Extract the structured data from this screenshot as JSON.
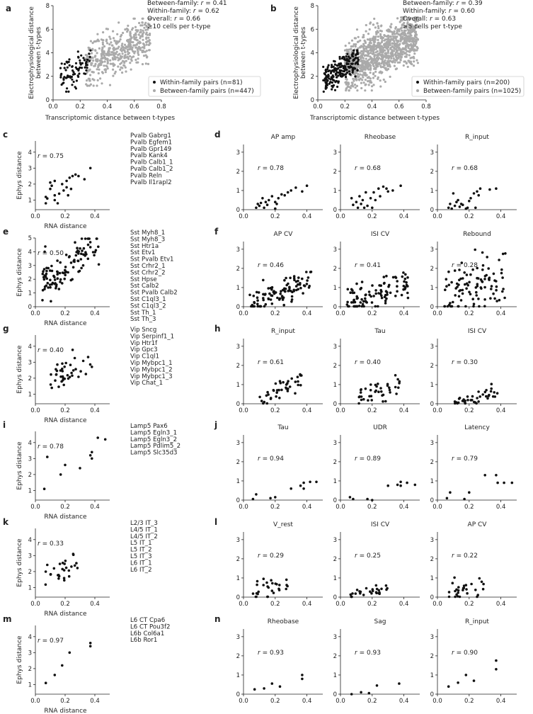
{
  "figure": {
    "colors": {
      "within": "#111111",
      "between": "#aaaaaa",
      "axis": "#222222"
    }
  },
  "chart_data": [
    {
      "id": "a",
      "type": "scatter",
      "panel_label": "a",
      "xlabel": "Transcriptomic distance between t-types",
      "ylabel": "Electrophysiological distance between t-types",
      "xlim": [
        0,
        0.8
      ],
      "ylim": [
        0,
        8
      ],
      "xticks": [
        "0.0",
        "0.2",
        "0.4",
        "0.6",
        "0.8"
      ],
      "yticks": [
        "0",
        "2",
        "4",
        "6",
        "8"
      ],
      "stats": [
        "Between-family: r = 0.41",
        "Within-family: r = 0.62",
        "Overall: r = 0.66",
        "≥10 cells per t-type"
      ],
      "legend_position": "lower-right",
      "series": [
        {
          "name": "Within-family pairs (n=81)",
          "color": "#111111",
          "n": 81,
          "x_range": [
            0.05,
            0.28
          ],
          "y_range": [
            0.7,
            4.2
          ],
          "r": 0.62
        },
        {
          "name": "Between-family pairs (n=447)",
          "color": "#aaaaaa",
          "n": 447,
          "x_range": [
            0.24,
            0.72
          ],
          "y_range": [
            1.2,
            6.9
          ],
          "r": 0.41
        }
      ]
    },
    {
      "id": "b",
      "type": "scatter",
      "panel_label": "b",
      "xlabel": "Transcriptomic distance between t-types",
      "ylabel": "Electrophysiological distance between t-types",
      "xlim": [
        0,
        0.8
      ],
      "ylim": [
        0,
        8
      ],
      "xticks": [
        "0.0",
        "0.2",
        "0.4",
        "0.6",
        "0.8"
      ],
      "yticks": [
        "0",
        "2",
        "4",
        "6",
        "8"
      ],
      "stats": [
        "Between-family: r = 0.39",
        "Within-family: r = 0.60",
        "Overall: r = 0.63",
        "≥5 cells per t-type"
      ],
      "legend_position": "lower-right",
      "series": [
        {
          "name": "Within-family pairs (n=200)",
          "color": "#111111",
          "n": 200,
          "x_range": [
            0.04,
            0.3
          ],
          "y_range": [
            0.7,
            4.2
          ],
          "r": 0.6
        },
        {
          "name": "Between-family pairs (n=1025)",
          "color": "#aaaaaa",
          "n": 1025,
          "x_range": [
            0.2,
            0.74
          ],
          "y_range": [
            0.8,
            7.0
          ],
          "r": 0.39
        }
      ]
    }
  ],
  "rows": [
    {
      "label": "c",
      "sub_label": "d",
      "r": "r = 0.75",
      "types": [
        "Pvalb Gabrg1",
        "Pvalb Egfem1",
        "Pvalb Gpr149",
        "Pvalb Kank4",
        "Pvalb Calb1_1",
        "Pvalb Calb1_2",
        "Pvalb Reln",
        "Pvalb Il1rapl2"
      ],
      "points": [
        [
          0.07,
          1.2
        ],
        [
          0.07,
          0.8
        ],
        [
          0.08,
          1.1
        ],
        [
          0.1,
          1.7
        ],
        [
          0.1,
          2.1
        ],
        [
          0.11,
          1.9
        ],
        [
          0.13,
          2.2
        ],
        [
          0.13,
          1.3
        ],
        [
          0.13,
          1.0
        ],
        [
          0.15,
          0.8
        ],
        [
          0.16,
          1.4
        ],
        [
          0.18,
          2.0
        ],
        [
          0.19,
          1.6
        ],
        [
          0.21,
          1.8
        ],
        [
          0.21,
          2.2
        ],
        [
          0.22,
          1.3
        ],
        [
          0.23,
          2.4
        ],
        [
          0.24,
          1.7
        ],
        [
          0.25,
          2.5
        ],
        [
          0.27,
          2.6
        ],
        [
          0.29,
          2.5
        ],
        [
          0.33,
          2.3
        ],
        [
          0.37,
          3.0
        ]
      ],
      "subplots": [
        {
          "title": "AP amp",
          "r": "r = 0.78",
          "points": [
            [
              0.08,
              0.1
            ],
            [
              0.09,
              0.3
            ],
            [
              0.1,
              0.2
            ],
            [
              0.11,
              0.35
            ],
            [
              0.12,
              0.6
            ],
            [
              0.13,
              0.1
            ],
            [
              0.15,
              0.25
            ],
            [
              0.16,
              0.5
            ],
            [
              0.18,
              0.7
            ],
            [
              0.2,
              0.4
            ],
            [
              0.21,
              0.3
            ],
            [
              0.22,
              0.6
            ],
            [
              0.24,
              0.8
            ],
            [
              0.26,
              0.75
            ],
            [
              0.28,
              0.9
            ],
            [
              0.3,
              1.0
            ],
            [
              0.33,
              1.15
            ],
            [
              0.37,
              0.95
            ],
            [
              0.4,
              1.25
            ],
            [
              0.2,
              0.05
            ],
            [
              0.14,
              0.4
            ]
          ]
        },
        {
          "title": "Rheobase",
          "r": "r = 0.68",
          "points": [
            [
              0.07,
              0.6
            ],
            [
              0.08,
              0.25
            ],
            [
              0.1,
              0.4
            ],
            [
              0.11,
              0.1
            ],
            [
              0.12,
              0.7
            ],
            [
              0.13,
              0.3
            ],
            [
              0.14,
              0.5
            ],
            [
              0.15,
              0.1
            ],
            [
              0.17,
              0.2
            ],
            [
              0.19,
              0.6
            ],
            [
              0.2,
              0.1
            ],
            [
              0.21,
              0.9
            ],
            [
              0.22,
              0.5
            ],
            [
              0.24,
              1.1
            ],
            [
              0.25,
              0.7
            ],
            [
              0.27,
              1.2
            ],
            [
              0.29,
              1.1
            ],
            [
              0.3,
              0.95
            ],
            [
              0.33,
              1.0
            ],
            [
              0.38,
              1.25
            ],
            [
              0.16,
              0.9
            ]
          ]
        },
        {
          "title": "R_input",
          "r": "r = 0.68",
          "points": [
            [
              0.07,
              0.1
            ],
            [
              0.08,
              0.3
            ],
            [
              0.09,
              0.05
            ],
            [
              0.1,
              0.85
            ],
            [
              0.11,
              0.2
            ],
            [
              0.12,
              0.4
            ],
            [
              0.13,
              0.5
            ],
            [
              0.14,
              0.15
            ],
            [
              0.15,
              0.3
            ],
            [
              0.16,
              0.25
            ],
            [
              0.18,
              0.05
            ],
            [
              0.19,
              0.1
            ],
            [
              0.2,
              0.45
            ],
            [
              0.21,
              0.6
            ],
            [
              0.23,
              0.85
            ],
            [
              0.24,
              0.1
            ],
            [
              0.25,
              0.95
            ],
            [
              0.26,
              0.75
            ],
            [
              0.27,
              1.1
            ],
            [
              0.33,
              1.05
            ],
            [
              0.37,
              1.1
            ]
          ]
        }
      ]
    },
    {
      "label": "e",
      "sub_label": "f",
      "r": "r = 0.50",
      "types": [
        "Sst Myh8_1",
        "Sst Myh8_3",
        "Sst Htr1a",
        "Sst Etv1",
        "Sst Pvalb Etv1",
        "Sst Crhr2_1",
        "Sst Crhr2_2",
        "Sst Hpse",
        "Sst Calb2",
        "Sst Pvalb Calb2",
        "Sst C1ql3_1",
        "Sst C1ql3_2",
        "Sst Th_1",
        "Sst Th_3"
      ],
      "gen": {
        "n": 110,
        "x0": 0.04,
        "x1": 0.43,
        "a": 1.7,
        "b": 4.5,
        "sd": 0.7,
        "seed": 11
      },
      "subplots": [
        {
          "title": "AP CV",
          "r": "r = 0.46",
          "gen": {
            "n": 100,
            "x0": 0.04,
            "x1": 0.43,
            "a": 0.1,
            "b": 1.4,
            "sd": 0.35,
            "seed": 21
          }
        },
        {
          "title": "ISI CV",
          "r": "r = 0.41",
          "gen": {
            "n": 100,
            "x0": 0.04,
            "x1": 0.43,
            "a": 0.2,
            "b": 1.2,
            "sd": 0.4,
            "seed": 31
          }
        },
        {
          "title": "Rebound",
          "r": "r = 0.28",
          "gen": {
            "n": 100,
            "x0": 0.04,
            "x1": 0.43,
            "a": 0.5,
            "b": 1.6,
            "sd": 0.75,
            "seed": 41
          }
        }
      ]
    },
    {
      "label": "g",
      "sub_label": "h",
      "r": "r = 0.40",
      "types": [
        "Vip Sncg",
        "Vip Serpinf1_1",
        "Vip Htr1f",
        "Vip Gpc3",
        "Vip C1ql1",
        "Vip Mybpc1_1",
        "Vip Mybpc1_2",
        "Vip Mybpc1_3",
        "Vip Chat_1"
      ],
      "gen": {
        "n": 40,
        "x0": 0.1,
        "x1": 0.38,
        "a": 1.8,
        "b": 3.0,
        "sd": 0.45,
        "seed": 51
      },
      "subplots": [
        {
          "title": "R_input",
          "r": "r = 0.61",
          "gen": {
            "n": 40,
            "x0": 0.1,
            "x1": 0.38,
            "a": 0.1,
            "b": 1.5,
            "sd": 0.3,
            "seed": 61
          }
        },
        {
          "title": "Tau",
          "r": "r = 0.40",
          "gen": {
            "n": 40,
            "x0": 0.1,
            "x1": 0.38,
            "a": 0.2,
            "b": 1.1,
            "sd": 0.35,
            "seed": 71
          }
        },
        {
          "title": "ISI CV",
          "r": "r = 0.30",
          "gen": {
            "n": 40,
            "x0": 0.1,
            "x1": 0.38,
            "a": 0.05,
            "b": 0.55,
            "sd": 0.18,
            "seed": 81
          }
        }
      ]
    },
    {
      "label": "i",
      "sub_label": "j",
      "r": "r = 0.78",
      "types": [
        "Lamp5 Pax6",
        "Lamp5 Egln3_1",
        "Lamp5 Egln3_2",
        "Lamp5 Pdlim5_2",
        "Lamp5 Slc35d3"
      ],
      "points": [
        [
          0.06,
          1.1
        ],
        [
          0.08,
          3.1
        ],
        [
          0.17,
          2.0
        ],
        [
          0.2,
          2.6
        ],
        [
          0.3,
          2.4
        ],
        [
          0.37,
          3.2
        ],
        [
          0.38,
          3.4
        ],
        [
          0.38,
          3.0
        ],
        [
          0.42,
          4.3
        ],
        [
          0.47,
          4.2
        ]
      ],
      "subplots": [
        {
          "title": "Tau",
          "r": "r = 0.94",
          "points": [
            [
              0.06,
              0.05
            ],
            [
              0.08,
              0.3
            ],
            [
              0.17,
              0.1
            ],
            [
              0.2,
              0.15
            ],
            [
              0.3,
              0.6
            ],
            [
              0.36,
              0.75
            ],
            [
              0.38,
              0.6
            ],
            [
              0.38,
              0.9
            ],
            [
              0.42,
              0.95
            ],
            [
              0.46,
              0.95
            ]
          ]
        },
        {
          "title": "UDR",
          "r": "r = 0.89",
          "points": [
            [
              0.06,
              0.15
            ],
            [
              0.08,
              0.05
            ],
            [
              0.17,
              0.05
            ],
            [
              0.2,
              0.0
            ],
            [
              0.3,
              0.75
            ],
            [
              0.36,
              0.8
            ],
            [
              0.38,
              0.95
            ],
            [
              0.38,
              0.75
            ],
            [
              0.42,
              0.9
            ],
            [
              0.47,
              0.8
            ]
          ]
        },
        {
          "title": "Latency",
          "r": "r = 0.79",
          "points": [
            [
              0.06,
              0.1
            ],
            [
              0.08,
              0.4
            ],
            [
              0.17,
              0.05
            ],
            [
              0.2,
              0.4
            ],
            [
              0.3,
              1.3
            ],
            [
              0.37,
              1.3
            ],
            [
              0.38,
              0.9
            ],
            [
              0.42,
              0.9
            ],
            [
              0.47,
              0.9
            ]
          ]
        }
      ]
    },
    {
      "label": "k",
      "sub_label": "l",
      "r": "r = 0.33",
      "types": [
        "L2/3 IT_3",
        "L4/5 IT_1",
        "L4/5 IT_2",
        "L5 IT_1",
        "L5 IT_2",
        "L5 IT_3",
        "L6 IT_1",
        "L6 IT_2"
      ],
      "gen": {
        "n": 28,
        "x0": 0.06,
        "x1": 0.3,
        "a": 1.7,
        "b": 2.4,
        "sd": 0.4,
        "seed": 91
      },
      "subplots": [
        {
          "title": "V_rest",
          "r": "r = 0.29",
          "gen": {
            "n": 28,
            "x0": 0.06,
            "x1": 0.3,
            "a": 0.2,
            "b": 0.6,
            "sd": 0.25,
            "seed": 101
          }
        },
        {
          "title": "ISI CV",
          "r": "r = 0.25",
          "gen": {
            "n": 28,
            "x0": 0.06,
            "x1": 0.3,
            "a": 0.1,
            "b": 0.4,
            "sd": 0.15,
            "seed": 111
          }
        },
        {
          "title": "AP CV",
          "r": "r = 0.22",
          "gen": {
            "n": 28,
            "x0": 0.06,
            "x1": 0.3,
            "a": 0.1,
            "b": 0.6,
            "sd": 0.25,
            "seed": 121
          }
        }
      ]
    },
    {
      "label": "m",
      "sub_label": "n",
      "r": "r = 0.97",
      "types": [
        "L6 CT Cpa6",
        "L6 CT Pou3f2",
        "L6b Col6a1",
        "L6b Ror1"
      ],
      "points": [
        [
          0.07,
          1.1
        ],
        [
          0.13,
          1.6
        ],
        [
          0.18,
          2.2
        ],
        [
          0.23,
          3.0
        ],
        [
          0.37,
          3.4
        ],
        [
          0.37,
          3.6
        ]
      ],
      "subplots": [
        {
          "title": "Rheobase",
          "r": "r = 0.93",
          "points": [
            [
              0.07,
              0.25
            ],
            [
              0.13,
              0.3
            ],
            [
              0.18,
              0.55
            ],
            [
              0.23,
              0.4
            ],
            [
              0.37,
              0.8
            ],
            [
              0.37,
              1.0
            ]
          ]
        },
        {
          "title": "Sag",
          "r": "r = 0.93",
          "points": [
            [
              0.07,
              0.0
            ],
            [
              0.13,
              0.1
            ],
            [
              0.18,
              0.05
            ],
            [
              0.23,
              0.45
            ],
            [
              0.37,
              0.55
            ]
          ]
        },
        {
          "title": "R_input",
          "r": "r = 0.90",
          "points": [
            [
              0.07,
              0.4
            ],
            [
              0.13,
              0.6
            ],
            [
              0.18,
              1.0
            ],
            [
              0.23,
              0.7
            ],
            [
              0.37,
              1.3
            ],
            [
              0.37,
              1.75
            ]
          ]
        }
      ]
    }
  ],
  "small_axes": {
    "left_xlabel": "RNA distance",
    "left_ylabel": "Ephys distance",
    "left_xlim": [
      0,
      0.5
    ],
    "left_ylim": [
      0,
      5
    ],
    "left_xticks": [
      "0.0",
      "0.2",
      "0.4"
    ],
    "left_yticks": [
      "0",
      "1",
      "2",
      "3",
      "4",
      "5"
    ],
    "left_yticks_top": [
      "1",
      "2",
      "3",
      "4"
    ],
    "left_yticks_top_rows": [
      "c",
      "g",
      "i",
      "k",
      "m"
    ],
    "right_xlim": [
      0,
      0.5
    ],
    "right_ylim": [
      0,
      3.4
    ],
    "right_xticks": [
      "0.0",
      "0.2",
      "0.4"
    ],
    "right_yticks": [
      "0",
      "1",
      "2",
      "3"
    ]
  }
}
